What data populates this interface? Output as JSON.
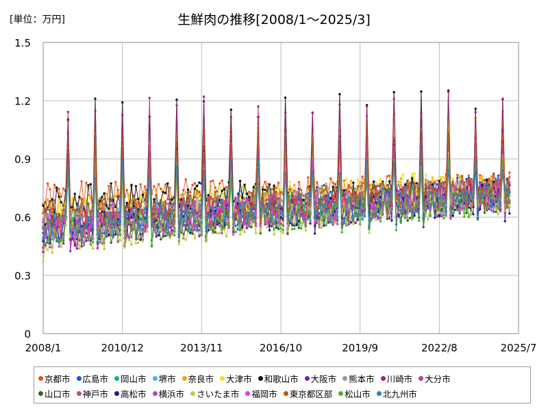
{
  "chart_data": {
    "type": "line",
    "title": "生鮮肉の推移[2008/1～2025/3]",
    "unit_label": "[単位：万円]",
    "x_start": "2008/1",
    "x_end": "2025/3",
    "x_ticks": [
      "2008/1",
      "2010/12",
      "2013/11",
      "2016/10",
      "2019/9",
      "2022/8",
      "2025/7"
    ],
    "y_ticks": [
      "0",
      "0.3",
      "0.6",
      "0.9",
      "1.2",
      "1.5"
    ],
    "ylim": [
      0,
      1.5
    ],
    "grid": true,
    "legend_position": "bottom",
    "series": [
      {
        "name": "京都市",
        "color": "#e8531e",
        "level": 0.7,
        "trend": 0.05,
        "peak": 0.95,
        "seed": 1
      },
      {
        "name": "広島市",
        "color": "#1a56db",
        "level": 0.6,
        "trend": 0.14,
        "peak": 0.85,
        "seed": 2
      },
      {
        "name": "岡山市",
        "color": "#17b07a",
        "level": 0.56,
        "trend": 0.17,
        "peak": 0.86,
        "seed": 3
      },
      {
        "name": "堺市",
        "color": "#45b7e8",
        "level": 0.6,
        "trend": 0.15,
        "peak": 1.0,
        "seed": 4
      },
      {
        "name": "奈良市",
        "color": "#f4a21b",
        "level": 0.64,
        "trend": 0.12,
        "peak": 1.05,
        "seed": 5
      },
      {
        "name": "大津市",
        "color": "#f1e21a",
        "level": 0.62,
        "trend": 0.16,
        "peak": 1.05,
        "seed": 6
      },
      {
        "name": "和歌山市",
        "color": "#111111",
        "level": 0.69,
        "trend": 0.04,
        "peak": 1.15,
        "seed": 7
      },
      {
        "name": "大阪市",
        "color": "#7a1ea1",
        "level": 0.5,
        "trend": 0.22,
        "peak": 0.95,
        "seed": 8
      },
      {
        "name": "熊本市",
        "color": "#9099a0",
        "level": 0.58,
        "trend": 0.14,
        "peak": 0.95,
        "seed": 9
      },
      {
        "name": "川崎市",
        "color": "#a8207a",
        "level": 0.53,
        "trend": 0.2,
        "peak": 1.15,
        "seed": 10
      },
      {
        "name": "大分市",
        "color": "#b83a9a",
        "level": 0.55,
        "trend": 0.18,
        "peak": 0.85,
        "seed": 11
      },
      {
        "name": "山口市",
        "color": "#2e6b12",
        "level": 0.52,
        "trend": 0.18,
        "peak": 0.8,
        "seed": 12
      },
      {
        "name": "神戸市",
        "color": "#d05050",
        "level": 0.58,
        "trend": 0.15,
        "peak": 0.9,
        "seed": 13
      },
      {
        "name": "高松市",
        "color": "#1c1c86",
        "level": 0.53,
        "trend": 0.16,
        "peak": 0.88,
        "seed": 14
      },
      {
        "name": "横浜市",
        "color": "#b548c0",
        "level": 0.52,
        "trend": 0.19,
        "peak": 0.9,
        "seed": 15
      },
      {
        "name": "さいたま市",
        "color": "#bccc3c",
        "level": 0.48,
        "trend": 0.22,
        "peak": 0.85,
        "seed": 16
      },
      {
        "name": "福岡市",
        "color": "#e83ad8",
        "level": 0.56,
        "trend": 0.16,
        "peak": 0.9,
        "seed": 17
      },
      {
        "name": "東京都区部",
        "color": "#b85a10",
        "level": 0.62,
        "trend": 0.13,
        "peak": 1.0,
        "seed": 18
      },
      {
        "name": "松山市",
        "color": "#50b030",
        "level": 0.52,
        "trend": 0.17,
        "peak": 0.82,
        "seed": 19
      },
      {
        "name": "北九州市",
        "color": "#2a80c0",
        "level": 0.54,
        "trend": 0.18,
        "peak": 0.85,
        "seed": 20
      }
    ]
  }
}
